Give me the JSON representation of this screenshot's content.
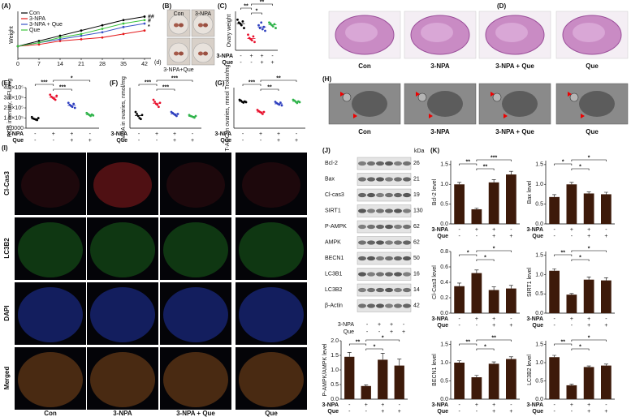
{
  "conditions": [
    {
      "name": "3-NPA",
      "signs": [
        "-",
        "+",
        "+",
        "-"
      ]
    },
    {
      "name": "Que",
      "signs": [
        "-",
        "-",
        "+",
        "+"
      ]
    }
  ],
  "chart_data": [
    {
      "type": "line",
      "label": "(A)",
      "ylabel": "Weight",
      "xlabel": "(d)",
      "x": [
        0,
        7,
        14,
        21,
        28,
        35,
        42
      ],
      "xlim": [
        0,
        42
      ],
      "xticks": [
        0,
        7,
        14,
        21,
        28,
        35,
        42
      ],
      "ylim": [
        15,
        42
      ],
      "series": [
        {
          "name": "Con",
          "color": "#000000",
          "values": [
            22,
            25,
            28,
            31,
            34,
            37,
            39
          ]
        },
        {
          "name": "3-NPA",
          "color": "#e41a1c",
          "values": [
            22,
            23,
            25,
            26,
            27,
            29,
            31
          ]
        },
        {
          "name": "3-NPA + Que",
          "color": "#3a53c5",
          "values": [
            22,
            24,
            26,
            28,
            30,
            33,
            35
          ]
        },
        {
          "name": "Que",
          "color": "#3cc43c",
          "values": [
            22,
            24,
            27,
            29,
            32,
            35,
            37
          ]
        }
      ],
      "annotations": [
        "##",
        "#",
        "*"
      ]
    },
    {
      "type": "dot",
      "label": "(C)",
      "ylabel": "Ovary weight",
      "ylim": [
        0.4,
        1.1
      ],
      "colors": [
        "#000000",
        "#e8112d",
        "#2e3fbf",
        "#2fb34a"
      ],
      "groups": [
        [
          0.95,
          0.9,
          0.88,
          0.85,
          0.92,
          0.8
        ],
        [
          0.68,
          0.62,
          0.6,
          0.58,
          0.65,
          0.55
        ],
        [
          0.85,
          0.8,
          0.9,
          0.78,
          0.82,
          0.75
        ],
        [
          0.9,
          0.88,
          0.85,
          0.83,
          0.87,
          0.8
        ]
      ],
      "means": [
        0.88,
        0.61,
        0.82,
        0.86
      ],
      "significance": [
        "**",
        "*",
        "**"
      ]
    },
    {
      "type": "dot",
      "label": "(E)",
      "ylabel": "ROS intensity, RFU/mg",
      "ylim": [
        0,
        400000
      ],
      "yticks": [
        {
          "value": 0,
          "label": "0.0000"
        },
        {
          "value": 100000,
          "label": "1.0×10⁵"
        },
        {
          "value": 200000,
          "label": "2.0×10⁵"
        },
        {
          "value": 300000,
          "label": "3.0×10⁵"
        },
        {
          "value": 400000,
          "label": "4.0×10⁵"
        }
      ],
      "colors": [
        "#000000",
        "#e8112d",
        "#2e3fbf",
        "#2fb34a"
      ],
      "groups": [
        [
          110000,
          95000,
          90000,
          85000,
          80000,
          100000
        ],
        [
          330000,
          310000,
          300000,
          290000,
          280000,
          320000
        ],
        [
          250000,
          230000,
          220000,
          210000,
          240000,
          200000
        ],
        [
          150000,
          140000,
          130000,
          120000,
          135000,
          125000
        ]
      ],
      "means": [
        93000,
        305000,
        225000,
        133000
      ],
      "significance": [
        "***",
        "***",
        "*"
      ]
    },
    {
      "type": "dot",
      "label": "(F)",
      "ylabel": "MDA in ovaries, nmol/mg",
      "ylim": [
        0,
        20
      ],
      "colors": [
        "#000000",
        "#e8112d",
        "#2e3fbf",
        "#2fb34a"
      ],
      "groups": [
        [
          8,
          7,
          6,
          5,
          4.5,
          6.5
        ],
        [
          14,
          13,
          12,
          11.5,
          10.5,
          12.5
        ],
        [
          8,
          7.5,
          7,
          6.5,
          6,
          7
        ],
        [
          6.5,
          6,
          5.8,
          5.5,
          5.2,
          6
        ]
      ],
      "means": [
        6.2,
        12.3,
        7,
        5.8
      ],
      "significance": [
        "***",
        "***",
        "***"
      ]
    },
    {
      "type": "dot",
      "label": "(G)",
      "ylabel": "T-AOC in ovaries, mmol Trolox/mg",
      "ylim": [
        0,
        10
      ],
      "colors": [
        "#000000",
        "#e8112d",
        "#2e3fbf",
        "#2fb34a"
      ],
      "groups": [
        [
          7,
          6.8,
          6.5,
          6.3,
          6.6,
          6.4
        ],
        [
          4.5,
          4.2,
          4,
          3.8,
          3.5,
          4
        ],
        [
          6.5,
          6.2,
          6,
          5.8,
          6.3,
          5.6
        ],
        [
          7,
          6.8,
          6.5,
          6.2,
          6.6,
          6.4
        ]
      ],
      "means": [
        6.6,
        4,
        6,
        6.6
      ],
      "significance": [
        "***",
        "**",
        "**"
      ]
    },
    {
      "type": "bar",
      "label": "(K)",
      "ylabel": "Bcl-2 level",
      "ylim": [
        0,
        1.6
      ],
      "yticks": [
        {
          "value": 0,
          "label": "0.0"
        },
        {
          "value": 0.5,
          "label": "0.5"
        },
        {
          "value": 1,
          "label": "1.0"
        },
        {
          "value": 1.5,
          "label": "1.5"
        }
      ],
      "color": "#3d1a0a",
      "values": [
        1.0,
        0.37,
        1.05,
        1.25
      ],
      "errors": [
        0.05,
        0.03,
        0.07,
        0.08
      ],
      "significance": [
        "**",
        "**",
        "***"
      ]
    },
    {
      "type": "bar",
      "ylabel": "Bax level",
      "ylim": [
        0,
        1.6
      ],
      "yticks": [
        {
          "value": 0,
          "label": "0.0"
        },
        {
          "value": 0.5,
          "label": "0.5"
        },
        {
          "value": 1,
          "label": "1.0"
        },
        {
          "value": 1.5,
          "label": "1.5"
        }
      ],
      "color": "#3d1a0a",
      "values": [
        0.68,
        1.0,
        0.77,
        0.75
      ],
      "errors": [
        0.06,
        0.05,
        0.04,
        0.05
      ],
      "significance": [
        "*",
        "*",
        "*"
      ]
    },
    {
      "type": "bar",
      "ylabel": "Cl-Cas3 level",
      "ylim": [
        0,
        0.8
      ],
      "yticks": [
        {
          "value": 0,
          "label": "0.0"
        },
        0.2,
        0.4,
        0.6,
        0.8
      ],
      "color": "#3d1a0a",
      "values": [
        0.35,
        0.52,
        0.3,
        0.32
      ],
      "errors": [
        0.04,
        0.04,
        0.04,
        0.04
      ],
      "significance": [
        "*",
        "*",
        "*"
      ]
    },
    {
      "type": "bar",
      "ylabel": "SIRT1 level",
      "ylim": [
        0,
        1.6
      ],
      "yticks": [
        {
          "value": 0,
          "label": "0.0"
        },
        {
          "value": 0.5,
          "label": "0.5"
        },
        {
          "value": 1,
          "label": "1.0"
        },
        {
          "value": 1.5,
          "label": "1.5"
        }
      ],
      "color": "#3d1a0a",
      "values": [
        1.1,
        0.48,
        0.87,
        0.85
      ],
      "errors": [
        0.05,
        0.03,
        0.07,
        0.07
      ],
      "significance": [
        "**",
        "*",
        "*"
      ]
    },
    {
      "type": "bar",
      "ylabel": "P-AMPK/AMPK level",
      "ylim": [
        0,
        2.0
      ],
      "yticks": [
        {
          "value": 0,
          "label": "0.0"
        },
        {
          "value": 0.5,
          "label": "0.5"
        },
        {
          "value": 1,
          "label": "1.0"
        },
        {
          "value": 1.5,
          "label": "1.5"
        },
        {
          "value": 2,
          "label": "2.0"
        }
      ],
      "color": "#3d1a0a",
      "values": [
        1.45,
        0.45,
        1.35,
        1.15
      ],
      "errors": [
        0.15,
        0.04,
        0.22,
        0.22
      ],
      "significance": [
        "**",
        "*",
        "*"
      ]
    },
    {
      "type": "bar",
      "ylabel": "BECN1 level",
      "ylim": [
        0,
        1.6
      ],
      "yticks": [
        {
          "value": 0,
          "label": "0.0"
        },
        {
          "value": 0.5,
          "label": "0.5"
        },
        {
          "value": 1,
          "label": "1.0"
        },
        {
          "value": 1.5,
          "label": "1.5"
        }
      ],
      "color": "#3d1a0a",
      "values": [
        1.0,
        0.6,
        0.97,
        1.1
      ],
      "errors": [
        0.05,
        0.05,
        0.05,
        0.06
      ],
      "significance": [
        "**",
        "*",
        "**"
      ]
    },
    {
      "type": "bar",
      "ylabel": "LC3B2 level",
      "ylim": [
        0,
        1.6
      ],
      "yticks": [
        {
          "value": 0,
          "label": "0.0"
        },
        {
          "value": 0.5,
          "label": "0.5"
        },
        {
          "value": 1,
          "label": "1.0"
        },
        {
          "value": 1.5,
          "label": "1.5"
        }
      ],
      "color": "#3d1a0a",
      "values": [
        1.15,
        0.38,
        0.88,
        0.92
      ],
      "errors": [
        0.05,
        0.03,
        0.03,
        0.04
      ],
      "significance": [
        "**",
        "*",
        "*"
      ]
    }
  ],
  "photos": {
    "label": "(B)",
    "captions": [
      "Con",
      "3-NPA",
      "3-NPA+Que"
    ]
  },
  "histology": {
    "label": "(D)",
    "captions": [
      "Con",
      "3-NPA",
      "3-NPA + Que",
      "Que"
    ]
  },
  "tem": {
    "label": "(H)",
    "captions": [
      "Con",
      "3-NPA",
      "3-NPA + Que",
      "Que"
    ]
  },
  "immunofluorescence": {
    "label": "(I)",
    "rows": [
      "Cl-Cas3",
      "LC3B2",
      "DAPI",
      "Merged"
    ],
    "columns": [
      "Con",
      "3-NPA",
      "3-NPA + Que",
      "Que"
    ]
  },
  "western_blot": {
    "label": "(J)",
    "unit": "kDa",
    "bands": [
      {
        "name": "Bcl-2",
        "size": 26
      },
      {
        "name": "Bax",
        "size": 21
      },
      {
        "name": "Cl-cas3",
        "size": 19
      },
      {
        "name": "SIRT1",
        "size": 130
      },
      {
        "name": "P-AMPK",
        "size": 62
      },
      {
        "name": "AMPK",
        "size": 62
      },
      {
        "name": "BECN1",
        "size": 50
      },
      {
        "name": "LC3B1",
        "size": 16
      },
      {
        "name": "LC3B2",
        "size": 14
      },
      {
        "name": "β-Actin",
        "size": 42
      }
    ]
  }
}
